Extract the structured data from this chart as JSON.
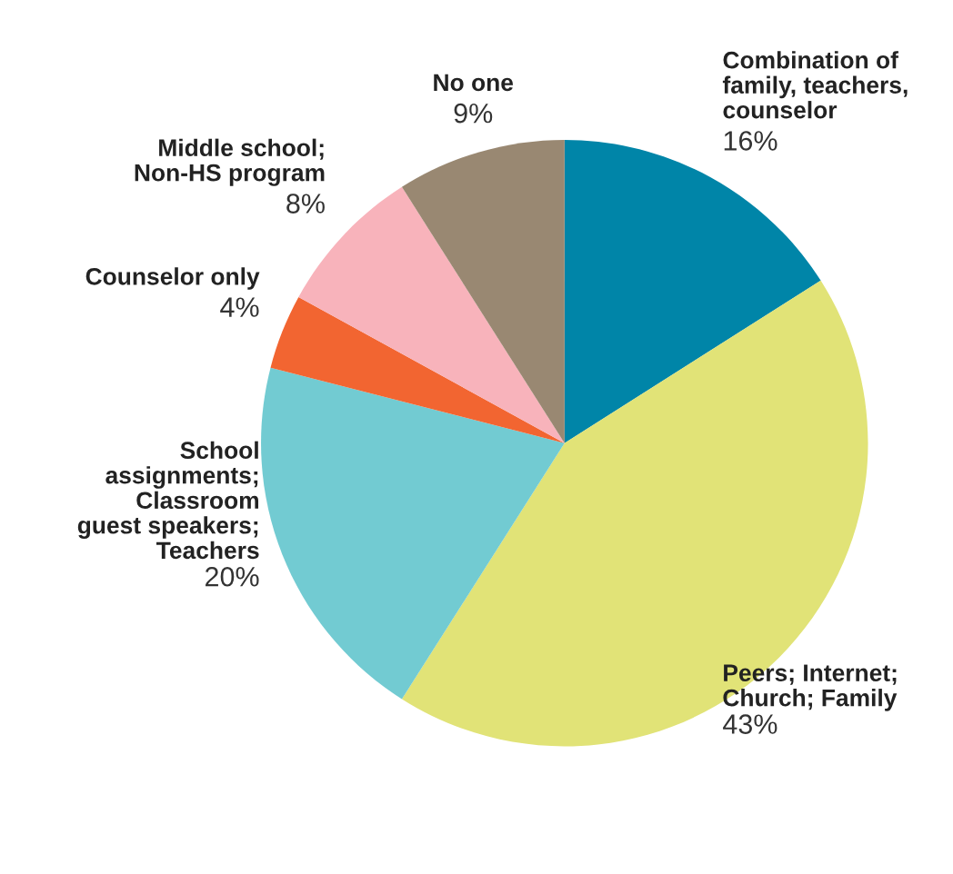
{
  "chart_data": {
    "type": "pie",
    "categories": [
      "Combination of\nfamily, teachers,\ncounselor",
      "Peers; Internet;\nChurch; Family",
      "School\nassignments;\nClassroom\nguest speakers;\nTeachers",
      "Counselor only",
      "Middle school;\nNon-HS program",
      "No one"
    ],
    "values": [
      16,
      43,
      20,
      4,
      8,
      9
    ],
    "colors": [
      "#0085a8",
      "#e1e377",
      "#72cbd2",
      "#f26531",
      "#f8b3bb",
      "#998872"
    ],
    "value_labels": [
      "16%",
      "43%",
      "20%",
      "4%",
      "8%",
      "9%"
    ]
  }
}
